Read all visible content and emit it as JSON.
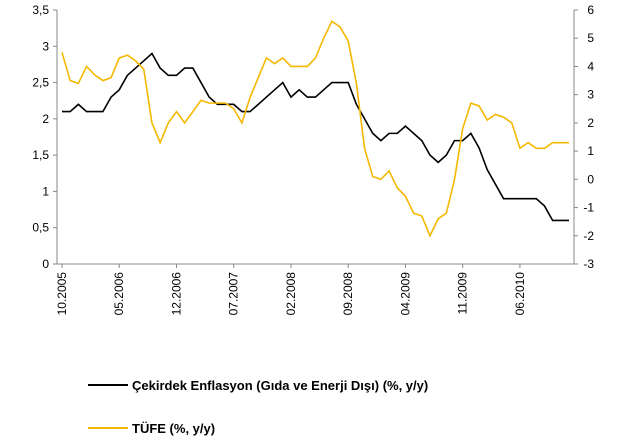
{
  "chart_data": {
    "type": "line",
    "categories": [
      "10.2005",
      null,
      null,
      null,
      null,
      null,
      null,
      "05.2006",
      null,
      null,
      null,
      null,
      null,
      null,
      "12.2006",
      null,
      null,
      null,
      null,
      null,
      null,
      "07.2007",
      null,
      null,
      null,
      null,
      null,
      null,
      "02.2008",
      null,
      null,
      null,
      null,
      null,
      null,
      "09.2008",
      null,
      null,
      null,
      null,
      null,
      null,
      "04.2009",
      null,
      null,
      null,
      null,
      null,
      null,
      "11.2009",
      null,
      null,
      null,
      null,
      null,
      null,
      "06.2010",
      null,
      null,
      null,
      null,
      null,
      null
    ],
    "series": [
      {
        "name": "Çekirdek Enflasyon (Gıda ve Enerji Dışı) (%, y/y)",
        "color": "#000000",
        "axis": "y",
        "values": [
          2.1,
          2.1,
          2.2,
          2.1,
          2.1,
          2.1,
          2.3,
          2.4,
          2.6,
          2.7,
          2.8,
          2.9,
          2.7,
          2.6,
          2.6,
          2.7,
          2.7,
          2.5,
          2.3,
          2.2,
          2.2,
          2.2,
          2.1,
          2.1,
          2.2,
          2.3,
          2.4,
          2.5,
          2.3,
          2.4,
          2.3,
          2.3,
          2.4,
          2.5,
          2.5,
          2.5,
          2.2,
          2.0,
          1.8,
          1.7,
          1.8,
          1.8,
          1.9,
          1.8,
          1.7,
          1.5,
          1.4,
          1.5,
          1.7,
          1.7,
          1.8,
          1.6,
          1.3,
          1.1,
          0.9,
          0.9,
          0.9,
          0.9,
          0.9,
          0.8,
          0.6,
          0.6,
          0.6
        ]
      },
      {
        "name": "TÜFE (%, y/y)",
        "color": "#f5b800",
        "axis": "y2",
        "values": [
          4.5,
          3.5,
          3.4,
          4.0,
          3.7,
          3.5,
          3.6,
          4.3,
          4.4,
          4.2,
          3.9,
          2.0,
          1.3,
          2.0,
          2.4,
          2.0,
          2.4,
          2.8,
          2.7,
          2.7,
          2.7,
          2.5,
          2.0,
          2.9,
          3.6,
          4.3,
          4.1,
          4.3,
          4.0,
          4.0,
          4.0,
          4.3,
          5.0,
          5.6,
          5.4,
          4.9,
          3.4,
          1.1,
          0.1,
          0.0,
          0.3,
          -0.3,
          -0.6,
          -1.2,
          -1.3,
          -2.0,
          -1.4,
          -1.2,
          0.0,
          1.8,
          2.7,
          2.6,
          2.1,
          2.3,
          2.2,
          2.0,
          1.1,
          1.3,
          1.1,
          1.1,
          1.3,
          1.3,
          1.3
        ]
      }
    ],
    "ylim": [
      0,
      3.5
    ],
    "yticks": [
      0,
      {
        "value": 0.5,
        "label": "0,5"
      },
      1,
      {
        "value": 1.5,
        "label": "1,5"
      },
      2,
      {
        "value": 2.5,
        "label": "2,5"
      },
      3,
      {
        "value": 3.5,
        "label": "3,5"
      }
    ],
    "y2lim": [
      -3,
      6
    ],
    "y2ticks": [
      -3,
      -2,
      -1,
      0,
      1,
      2,
      3,
      4,
      5,
      6
    ],
    "grid": false
  }
}
